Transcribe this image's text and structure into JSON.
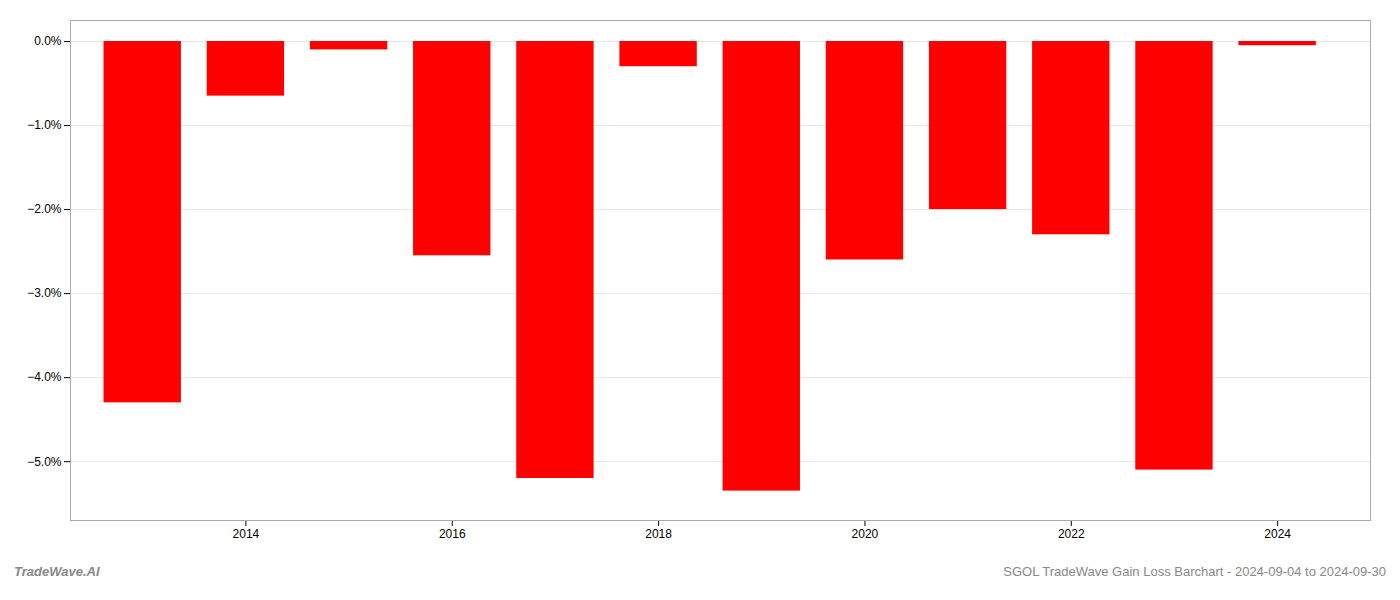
{
  "chart_data": {
    "type": "bar",
    "x": [
      2013,
      2014,
      2015,
      2016,
      2017,
      2018,
      2019,
      2020,
      2021,
      2022,
      2023,
      2024
    ],
    "values": [
      -4.3,
      -0.65,
      -0.1,
      -2.55,
      -5.2,
      -0.3,
      -5.35,
      -2.6,
      -2.0,
      -2.3,
      -5.1,
      -0.05
    ],
    "color": "#ff0000",
    "xlim": [
      2012.3,
      2024.9
    ],
    "xticks": [
      2014,
      2016,
      2018,
      2020,
      2022,
      2024
    ],
    "ylim": [
      -5.7,
      0.25
    ],
    "yticks": [
      {
        "value": 0.0,
        "label": "0.0%"
      },
      {
        "value": -1.0,
        "label": "−1.0%"
      },
      {
        "value": -2.0,
        "label": "−2.0%"
      },
      {
        "value": -3.0,
        "label": "−3.0%"
      },
      {
        "value": -4.0,
        "label": "−4.0%"
      },
      {
        "value": -5.0,
        "label": "−5.0%"
      }
    ],
    "grid": true,
    "annotations": [
      "TradeWave.AI",
      "SGOL TradeWave Gain Loss Barchart - 2024-09-04 to 2024-09-30"
    ]
  }
}
